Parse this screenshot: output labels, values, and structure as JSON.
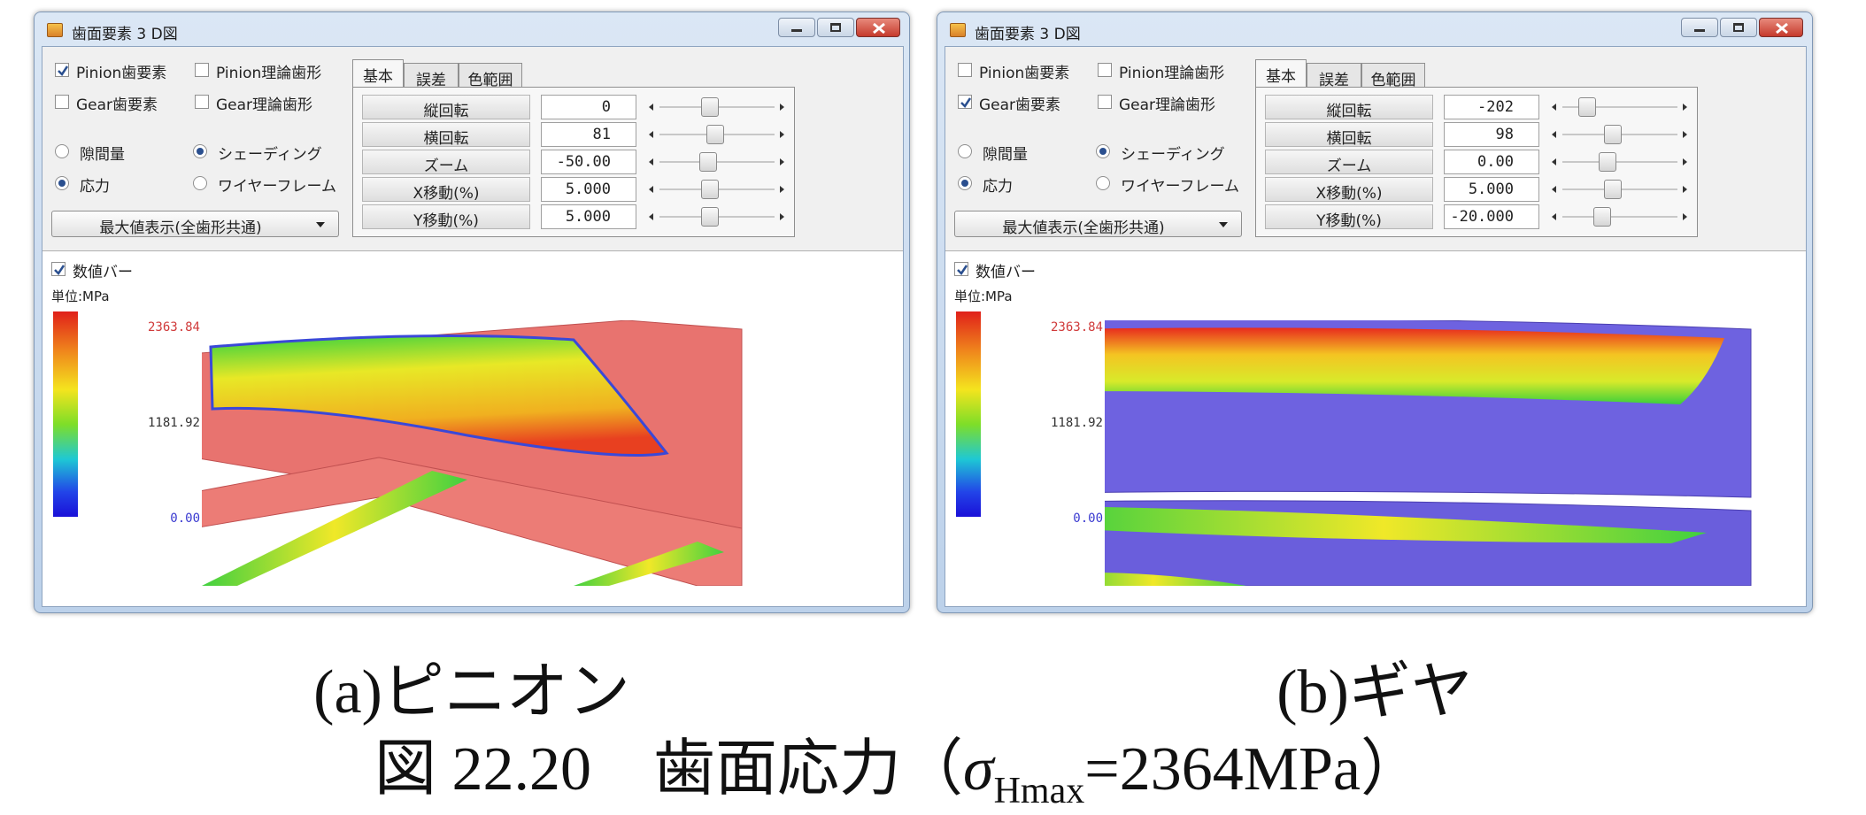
{
  "windows": [
    {
      "title": "歯面要素 3 D図",
      "checkboxes": [
        {
          "label": "Pinion歯要素",
          "checked": true
        },
        {
          "label": "Pinion理論歯形",
          "checked": false
        },
        {
          "label": "Gear歯要素",
          "checked": false
        },
        {
          "label": "Gear理論歯形",
          "checked": false
        }
      ],
      "radios": [
        {
          "label": "隙間量",
          "selected": false
        },
        {
          "label": "シェーディング",
          "selected": true
        },
        {
          "label": "応力",
          "selected": true
        },
        {
          "label": "ワイヤーフレーム",
          "selected": false
        }
      ],
      "dropdown": "最大値表示(全歯形共通)",
      "tabs": [
        "基本",
        "誤差",
        "色範囲"
      ],
      "active_tab": 0,
      "rows": [
        {
          "label": "縦回転",
          "value": "0"
        },
        {
          "label": "横回転",
          "value": "81"
        },
        {
          "label": "ズーム",
          "value": "-50.00"
        },
        {
          "label": "X移動(%)",
          "value": "5.000"
        },
        {
          "label": "Y移動(%)",
          "value": "5.000"
        }
      ],
      "value_bar": {
        "label": "数値バー",
        "checked": true
      },
      "unit": "単位:MPa",
      "scale_labels": [
        "2363.84",
        "1181.92",
        "0.00"
      ],
      "caption": "(a)ピニオン"
    },
    {
      "title": "歯面要素 3 D図",
      "checkboxes": [
        {
          "label": "Pinion歯要素",
          "checked": false
        },
        {
          "label": "Pinion理論歯形",
          "checked": false
        },
        {
          "label": "Gear歯要素",
          "checked": true
        },
        {
          "label": "Gear理論歯形",
          "checked": false
        }
      ],
      "radios": [
        {
          "label": "隙間量",
          "selected": false
        },
        {
          "label": "シェーディング",
          "selected": true
        },
        {
          "label": "応力",
          "selected": true
        },
        {
          "label": "ワイヤーフレーム",
          "selected": false
        }
      ],
      "dropdown": "最大値表示(全歯形共通)",
      "tabs": [
        "基本",
        "誤差",
        "色範囲"
      ],
      "active_tab": 0,
      "rows": [
        {
          "label": "縦回転",
          "value": "-202"
        },
        {
          "label": "横回転",
          "value": "98"
        },
        {
          "label": "ズーム",
          "value": "0.00"
        },
        {
          "label": "X移動(%)",
          "value": "5.000"
        },
        {
          "label": "Y移動(%)",
          "value": "-20.000"
        }
      ],
      "value_bar": {
        "label": "数値バー",
        "checked": true
      },
      "unit": "単位:MPa",
      "scale_labels": [
        "2363.84",
        "1181.92",
        "0.00"
      ],
      "caption": "(b)ギヤ"
    }
  ],
  "figure_caption": {
    "prefix": "図 22.20　歯面応力（",
    "symbol": "σ",
    "subscript": "Hmax",
    "suffix": "=2364MPa）"
  }
}
